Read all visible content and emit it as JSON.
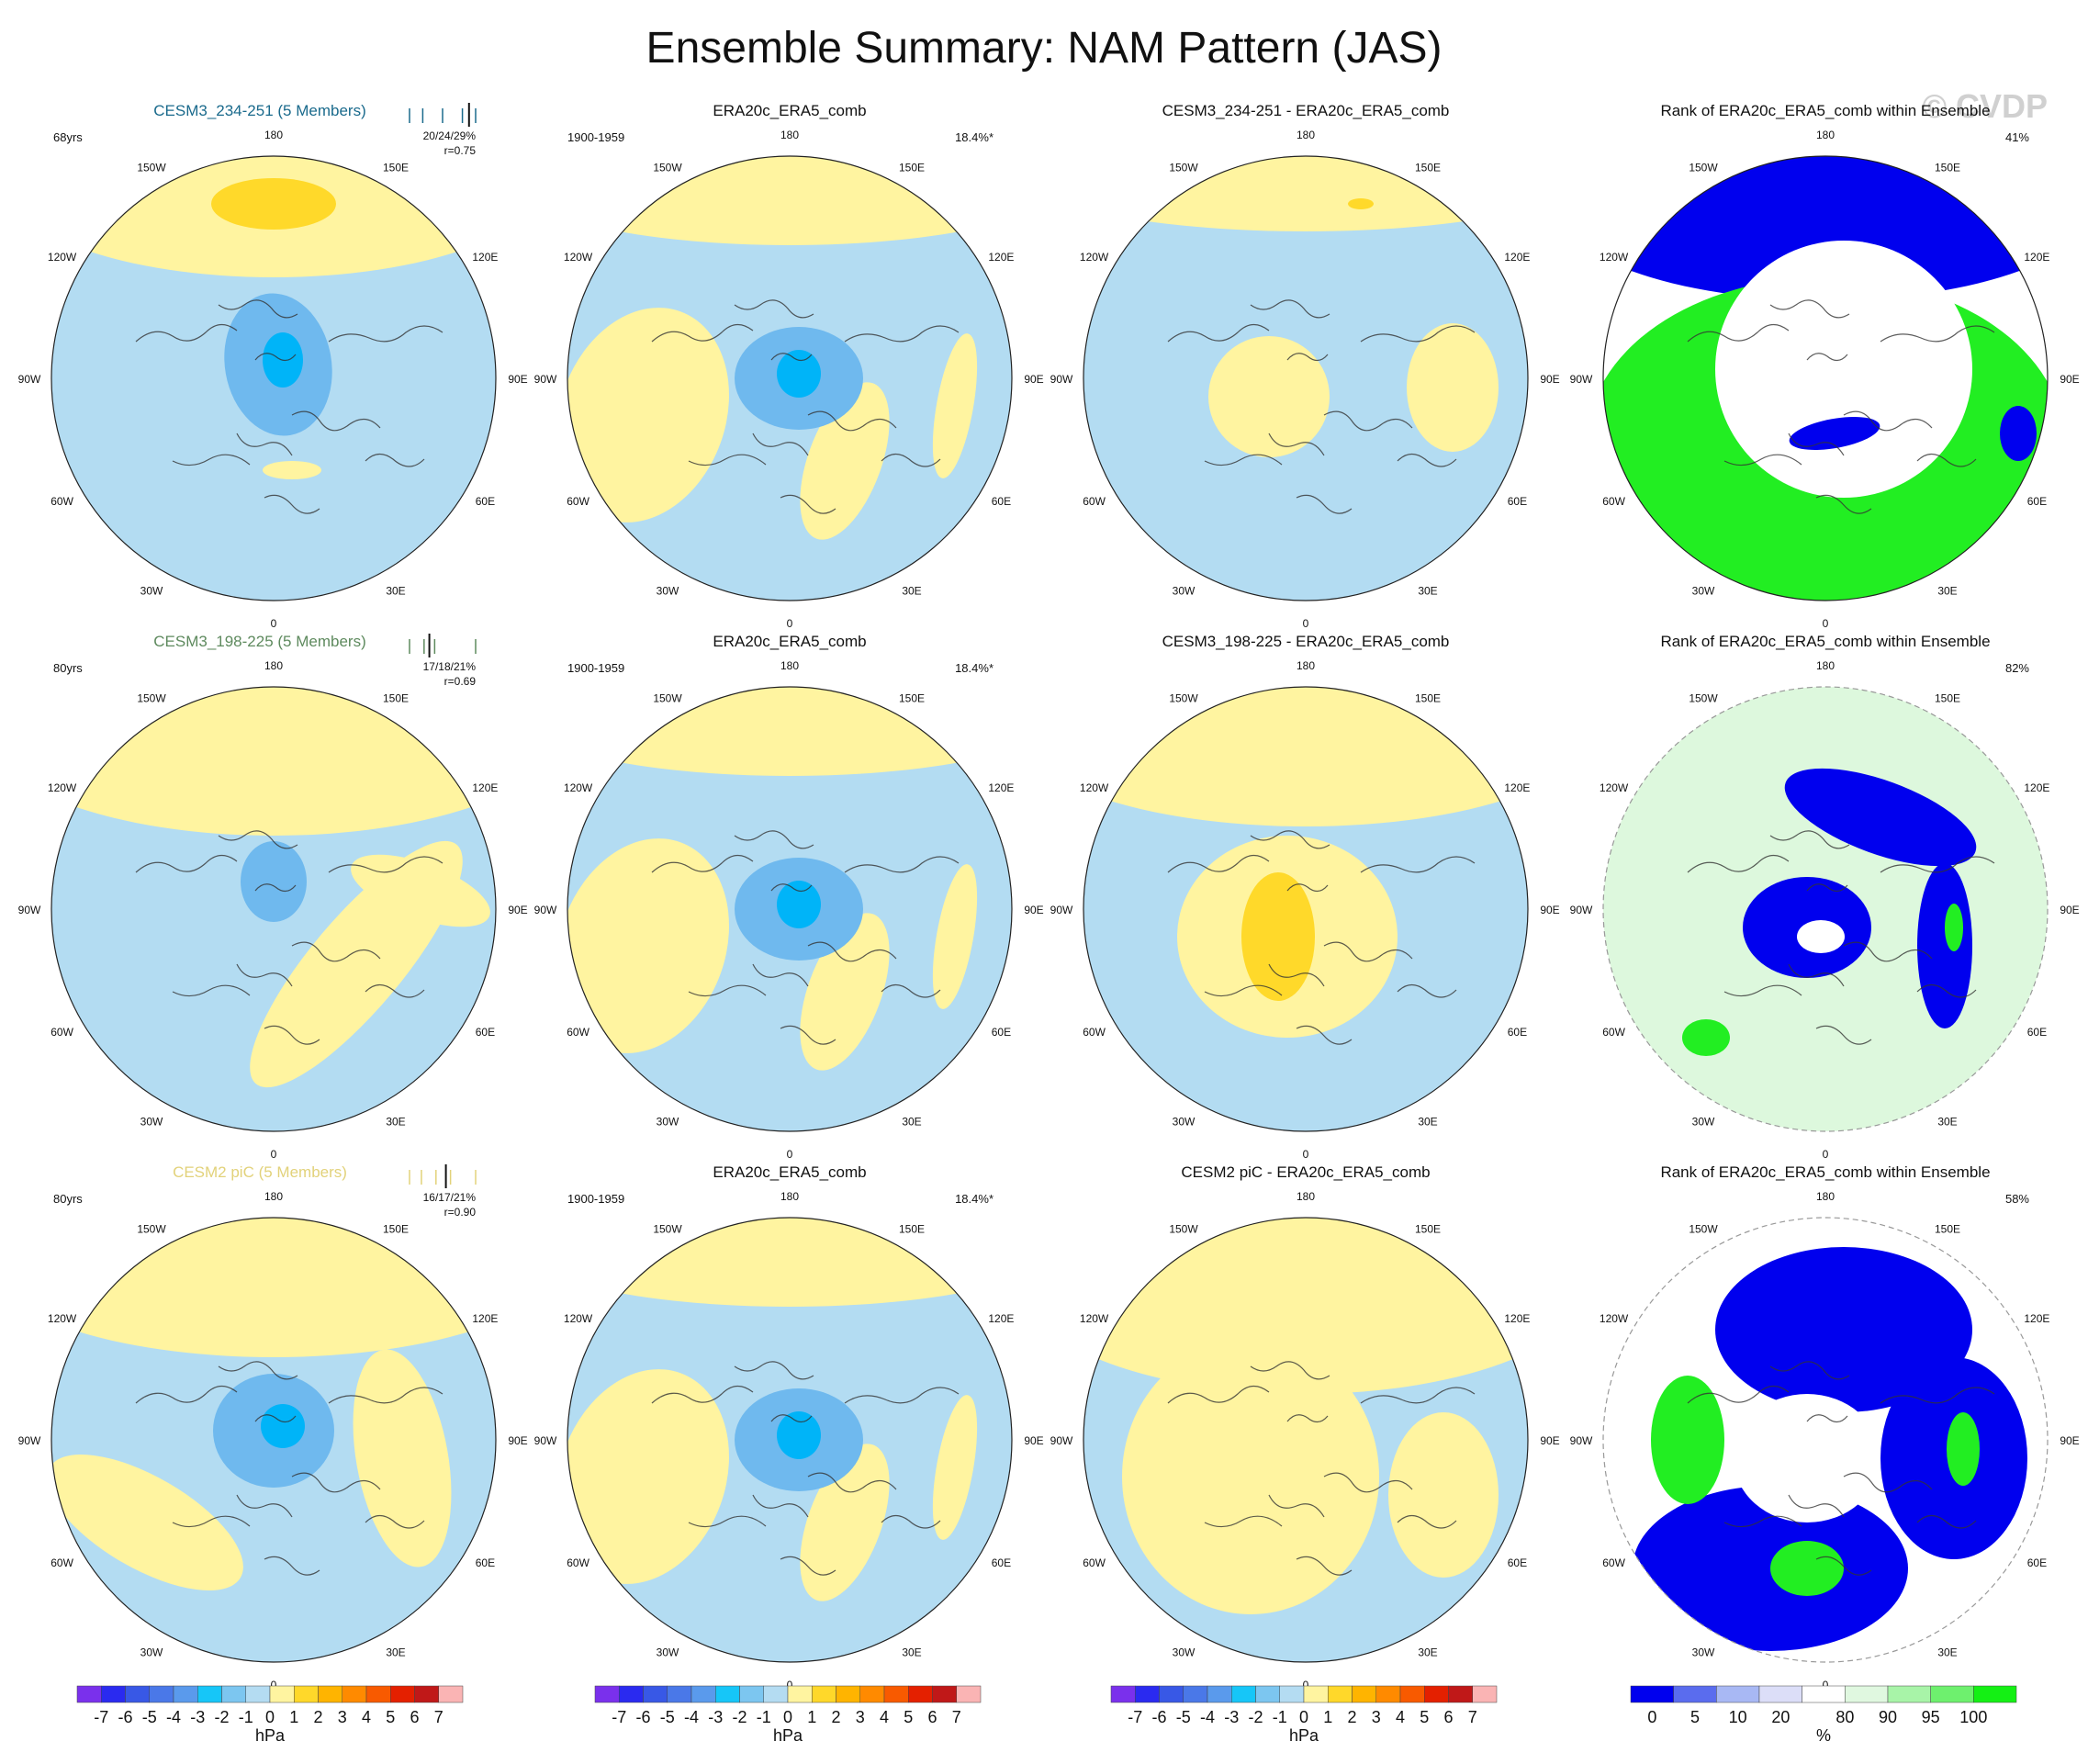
{
  "figure": {
    "title": "Ensemble Summary: NAM Pattern (JAS)",
    "watermark": "© CVDP"
  },
  "colors": {
    "land_outline": "#333333",
    "circle_border": "#222222",
    "positive_light": "#fff4a0",
    "positive_medium": "#ffd92a",
    "negative_light": "#b3dcf2",
    "negative_medium": "#6fb9ee",
    "negative_strong": "#00b4f8",
    "rank_low": "#0000ee",
    "rank_high": "#22ee22",
    "rank_mid": "#ddf8dd"
  },
  "longitude_labels": [
    "180",
    "150E",
    "120E",
    "90E",
    "60E",
    "30E",
    "0",
    "30W",
    "60W",
    "90W",
    "120W",
    "150W"
  ],
  "hpa_legend": {
    "labels": [
      "-7",
      "-6",
      "-5",
      "-4",
      "-3",
      "-2",
      "-1",
      "0",
      "1",
      "2",
      "3",
      "4",
      "5",
      "6",
      "7"
    ],
    "units": "hPa",
    "colors": [
      "#7a30ec",
      "#2a2af0",
      "#3858e6",
      "#4a78e8",
      "#5a9aec",
      "#16c6f8",
      "#7cc6f0",
      "#b4dcf2",
      "#fff4a0",
      "#ffd82a",
      "#ffb400",
      "#ff8a00",
      "#f85a00",
      "#e42000",
      "#c01818",
      "#fab4b4"
    ]
  },
  "pct_legend": {
    "labels": [
      "0",
      "5",
      "10",
      "20",
      "80",
      "90",
      "95",
      "100"
    ],
    "units": "%",
    "colors": [
      "#0000ee",
      "#5a6cee",
      "#a8b8f4",
      "#dcdef8",
      "#ffffff",
      "#e0f8e0",
      "#a8f4a8",
      "#6ef06e",
      "#14f014"
    ]
  },
  "rows": [
    {
      "ensemble": {
        "title": "CESM3_234-251 (5 Members)",
        "title_color": "#1a6a8c",
        "years": "68yrs",
        "stats": "20/24/29%",
        "corr": "r=0.75",
        "bar_values": [
          0.0,
          0.2,
          0.5,
          0.8,
          1.0
        ],
        "obs_bar": 0.9
      },
      "obs": {
        "title": "ERA20c_ERA5_comb",
        "period": "1900-1959",
        "pct": "18.4%*"
      },
      "diff": {
        "title": "CESM3_234-251 - ERA20c_ERA5_comb"
      },
      "rank": {
        "title": "Rank of ERA20c_ERA5_comb within Ensemble",
        "pct": "41%"
      }
    },
    {
      "ensemble": {
        "title": "CESM3_198-225 (5 Members)",
        "title_color": "#5e8a5e",
        "years": "80yrs",
        "stats": "17/18/21%",
        "corr": "r=0.69",
        "bar_values": [
          0.0,
          0.22,
          0.3,
          0.38,
          1.0
        ],
        "obs_bar": 0.3
      },
      "obs": {
        "title": "ERA20c_ERA5_comb",
        "period": "1900-1959",
        "pct": "18.4%*"
      },
      "diff": {
        "title": "CESM3_198-225 - ERA20c_ERA5_comb"
      },
      "rank": {
        "title": "Rank of ERA20c_ERA5_comb within Ensemble",
        "pct": "82%"
      }
    },
    {
      "ensemble": {
        "title": "CESM2 piC (5 Members)",
        "title_color": "#e2d27a",
        "years": "80yrs",
        "stats": "16/17/21%",
        "corr": "r=0.90",
        "bar_values": [
          0.0,
          0.18,
          0.4,
          0.62,
          1.0
        ],
        "obs_bar": 0.55
      },
      "obs": {
        "title": "ERA20c_ERA5_comb",
        "period": "1900-1959",
        "pct": "18.4%*"
      },
      "diff": {
        "title": "CESM2 piC - ERA20c_ERA5_comb"
      },
      "rank": {
        "title": "Rank of ERA20c_ERA5_comb within Ensemble",
        "pct": "58%"
      }
    }
  ],
  "chart_data": {
    "type": "map-panels",
    "projection": "polar stereographic (Northern Hemisphere)",
    "variable": "Sea level pressure NAM pattern, JAS",
    "panel_types": [
      "ensemble mean pattern (hPa)",
      "observed pattern (hPa)",
      "difference (hPa)",
      "rank of observations within ensemble (%)"
    ],
    "rows": [
      "CESM3_234-251",
      "CESM3_198-225",
      "CESM2 piC"
    ],
    "hpa_levels": [
      -7,
      -6,
      -5,
      -4,
      -3,
      -2,
      -1,
      0,
      1,
      2,
      3,
      4,
      5,
      6,
      7
    ],
    "pct_levels": [
      0,
      5,
      10,
      20,
      80,
      90,
      95,
      100
    ]
  }
}
